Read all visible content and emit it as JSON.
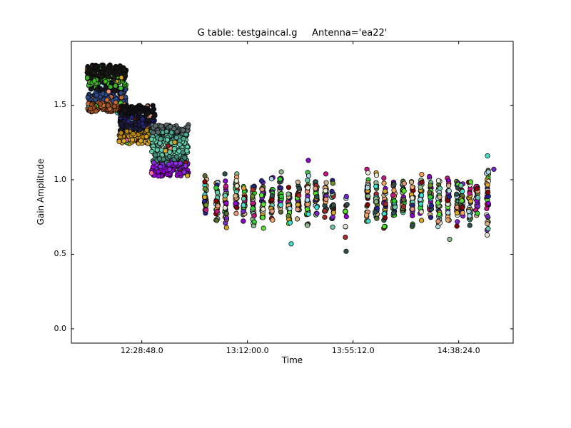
{
  "chart_data": {
    "type": "scatter",
    "title": "G table: testgaincal.g     Antenna='ea22'",
    "xlabel": "Time",
    "ylabel": "Gain Amplitude",
    "x_epoch": "12:00:00",
    "xlim_seconds": [
      0,
      10841
    ],
    "x_tick_seconds": [
      1728,
      4320,
      6912,
      9504
    ],
    "x_tick_labels": [
      "12:28:48.0",
      "13:12:00.0",
      "13:55:12.0",
      "14:38:24.0"
    ],
    "ylim": [
      -0.096,
      1.928
    ],
    "y_ticks": [
      0.0,
      0.5,
      1.0,
      1.5
    ],
    "y_tick_labels": [
      "0.0",
      "0.5",
      "1.0",
      "1.5"
    ],
    "grid": false,
    "legend": "none",
    "figure_bg": "#ffffff",
    "frame_color": "#000000",
    "marker": {
      "radius": 3.2,
      "edge_color": "#0a0a0a",
      "edge_width": 0.8
    },
    "palette": [
      "#66CDAA",
      "#54E82A",
      "#8B0000",
      "#9400D3",
      "#E9967A",
      "#24248F",
      "#2F4F4F",
      "#40E0D0",
      "#ADD8E6",
      "#6B8E23",
      "#DAA520",
      "#8FBC8F",
      "#A52A2A",
      "#7D26CD",
      "#F4A460",
      "#32CD32",
      "#C71585",
      "#556B2F",
      "#D2B48C",
      "#E8E8D0"
    ],
    "blocks": [
      {
        "t_start": 385,
        "t_end": 1349,
        "amp_min": 1.45,
        "amp_max": 1.77,
        "n": 380,
        "layers": [
          "#131310",
          "#1a1a14",
          "#3cb521",
          "#14141f",
          "#2a4a8a",
          "#c96a35",
          "#9c5220"
        ],
        "specks": [
          "#40E0D0",
          "#E9967A",
          "#ADD8E6",
          "#DAA520",
          "#C71585",
          "#32CD32"
        ]
      },
      {
        "t_start": 1173,
        "t_end": 2049,
        "amp_min": 1.24,
        "amp_max": 1.5,
        "n": 340,
        "layers": [
          "#101014",
          "#15151d",
          "#23237a",
          "#1b1b38",
          "#B8860B",
          "#DAA520"
        ],
        "specks": [
          "#E060A0",
          "#66CDAA",
          "#E9967A",
          "#40E0D0",
          "#8B0000",
          "#54E82A"
        ]
      },
      {
        "t_start": 1962,
        "t_end": 2872,
        "amp_min": 1.02,
        "amp_max": 1.37,
        "n": 380,
        "layers": [
          "#5a6a6a",
          "#4aa890",
          "#66CDAA",
          "#66CDAA",
          "#3d8a78",
          "#8A2BE2",
          "#9400D3"
        ],
        "specks": [
          "#8B1A1A",
          "#E9967A",
          "#40E0D0",
          "#FF69B4",
          "#DAA520"
        ]
      }
    ],
    "strips": [
      [
        3293,
        0.72,
        1.04,
        26
      ],
      [
        3573,
        0.7,
        1.02,
        30
      ],
      [
        3783,
        0.66,
        1.05,
        32
      ],
      [
        4046,
        0.72,
        1.06,
        28
      ],
      [
        4239,
        0.7,
        1.0,
        30
      ],
      [
        4466,
        0.64,
        1.04,
        34
      ],
      [
        4694,
        0.63,
        1.06,
        34
      ],
      [
        4921,
        0.68,
        1.05,
        30
      ],
      [
        5132,
        0.7,
        1.07,
        32
      ],
      [
        5342,
        0.66,
        1.04,
        30
      ],
      [
        5569,
        0.7,
        1.02,
        28
      ],
      [
        5797,
        0.65,
        1.08,
        34
      ],
      [
        6007,
        0.7,
        1.08,
        30
      ],
      [
        6235,
        0.72,
        1.05,
        26
      ],
      [
        6410,
        0.66,
        1.02,
        24
      ],
      [
        6743,
        0.54,
        1.0,
        14
      ],
      [
        7268,
        0.7,
        1.09,
        32
      ],
      [
        7479,
        0.68,
        1.05,
        34
      ],
      [
        7689,
        0.66,
        1.06,
        32
      ],
      [
        7916,
        0.7,
        1.04,
        30
      ],
      [
        8144,
        0.67,
        1.07,
        34
      ],
      [
        8372,
        0.66,
        1.03,
        30
      ],
      [
        8582,
        0.72,
        1.06,
        28
      ],
      [
        8810,
        0.7,
        1.05,
        30
      ],
      [
        9020,
        0.64,
        1.06,
        34
      ],
      [
        9248,
        0.7,
        1.04,
        28
      ],
      [
        9475,
        0.66,
        1.05,
        30
      ],
      [
        9581,
        0.7,
        1.02,
        26
      ],
      [
        9773,
        0.68,
        1.04,
        30
      ],
      [
        9948,
        0.72,
        1.06,
        28
      ],
      [
        10211,
        0.59,
        1.08,
        34
      ]
    ],
    "outliers": [
      [
        5394,
        0.57,
        "#40E0D0"
      ],
      [
        5815,
        1.13,
        "#9400D3"
      ],
      [
        6743,
        0.52,
        "#2F4F4F"
      ],
      [
        9283,
        0.6,
        "#8FBC8F"
      ],
      [
        10211,
        1.16,
        "#40E0D0"
      ],
      [
        10366,
        1.07,
        "#7D26CD"
      ]
    ]
  }
}
